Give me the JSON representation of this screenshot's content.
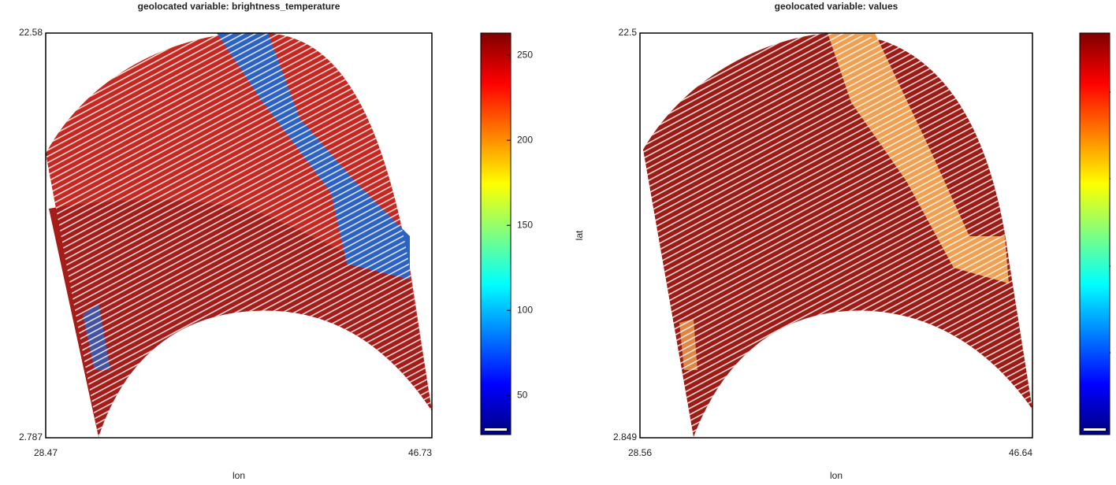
{
  "chart_data": [
    {
      "type": "scatter",
      "title": "geolocated variable: brightness_temperature",
      "xlabel": "lon",
      "xlim": [
        28.47,
        46.73
      ],
      "xticks": [
        28.47,
        46.73
      ],
      "ylim": [
        2.787,
        22.58
      ],
      "yticks": [
        2.787,
        22.58
      ],
      "colormap": "jet",
      "clim": [
        27,
        263
      ],
      "cticks": [
        50,
        100,
        150,
        200,
        250
      ]
    },
    {
      "type": "scatter",
      "title": "geolocated variable: values",
      "xlabel": "lon",
      "ylabel": "lat",
      "xlim": [
        28.56,
        46.64
      ],
      "xticks": [
        28.56,
        46.64
      ],
      "ylim": [
        2.849,
        22.5
      ],
      "yticks": [
        2.849,
        22.5
      ],
      "colormap": "jet"
    }
  ]
}
